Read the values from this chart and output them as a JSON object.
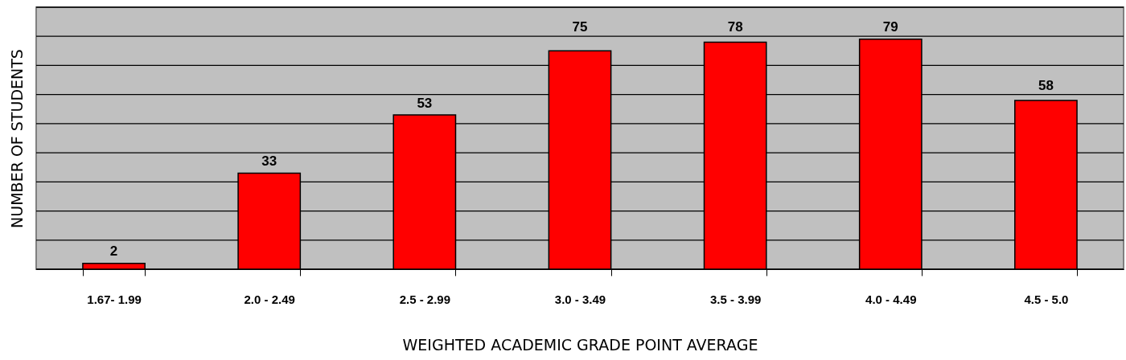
{
  "chart_data": {
    "type": "bar",
    "xlabel": "WEIGHTED ACADEMIC GRADE POINT AVERAGE",
    "ylabel": "NUMBER OF STUDENTS",
    "categories": [
      "1.67- 1.99",
      "2.0 - 2.49",
      "2.5 - 2.99",
      "3.0 - 3.49",
      "3.5 - 3.99",
      "4.0 - 4.49",
      "4.5 - 5.0"
    ],
    "values": [
      2,
      33,
      53,
      75,
      78,
      79,
      58
    ],
    "color": "#ff0000",
    "ylim": [
      0,
      90
    ],
    "yticks": [
      {
        "value": 0,
        "label": null
      },
      {
        "value": 10,
        "label": null
      },
      {
        "value": 20,
        "label": null
      },
      {
        "value": 30,
        "label": null
      },
      {
        "value": 40,
        "label": null
      },
      {
        "value": 50,
        "label": null
      },
      {
        "value": 60,
        "label": null
      },
      {
        "value": 70,
        "label": null
      },
      {
        "value": 80,
        "label": null
      },
      {
        "value": 90,
        "label": null
      }
    ],
    "tick_labels": "x",
    "grid": "y",
    "data_labels": true
  }
}
